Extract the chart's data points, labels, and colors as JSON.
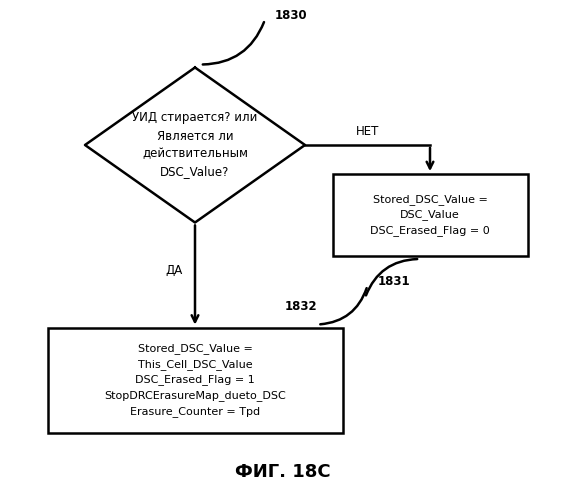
{
  "background_color": "#ffffff",
  "title": "ФИГ. 18С",
  "title_fontsize": 13,
  "label_1830": "1830",
  "label_1831": "1831",
  "label_1832": "1832",
  "diamond_text": "УИД стирается? или\nЯвляется ли\nдействительным\nDSC_Value?",
  "box_left_text": "Stored_DSC_Value =\nThis_Cell_DSC_Value\nDSC_Erased_Flag = 1\nStopDRCErasureMap_dueto_DSC\nErasure_Counter = Tpd",
  "box_right_text": "Stored_DSC_Value =\nDSC_Value\nDSC_Erased_Flag = 0",
  "label_da": "ДА",
  "label_net": "НЕТ",
  "font_size_box": 7.5,
  "font_size_label": 8,
  "font_size_branch": 8
}
